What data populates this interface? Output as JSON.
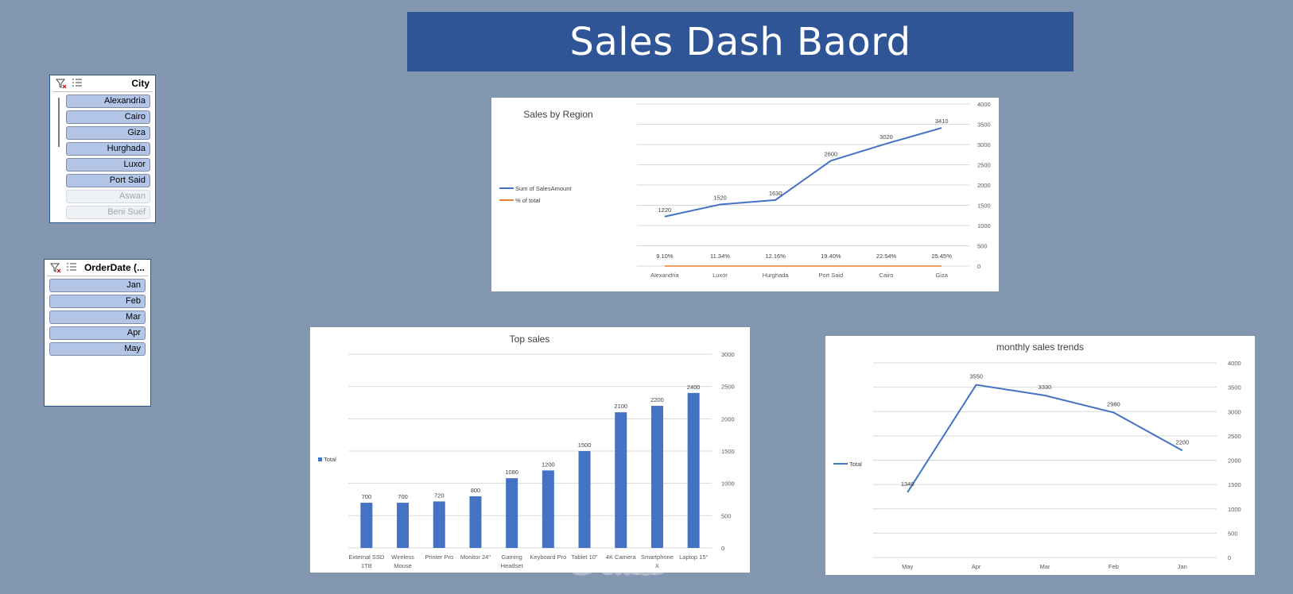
{
  "dashboard": {
    "title": "Sales Dash Baord"
  },
  "slicers": {
    "city": {
      "title": "City",
      "items": [
        {
          "label": "Alexandria",
          "has_data": true
        },
        {
          "label": "Cairo",
          "has_data": true
        },
        {
          "label": "Giza",
          "has_data": true
        },
        {
          "label": "Hurghada",
          "has_data": true
        },
        {
          "label": "Luxor",
          "has_data": true
        },
        {
          "label": "Port Said",
          "has_data": true
        },
        {
          "label": "Aswan",
          "has_data": false
        },
        {
          "label": "Beni Suef",
          "has_data": false
        }
      ]
    },
    "orderdate": {
      "title": "OrderDate (...",
      "items": [
        {
          "label": "Jan"
        },
        {
          "label": "Feb"
        },
        {
          "label": "Mar"
        },
        {
          "label": "Apr"
        },
        {
          "label": "May"
        }
      ]
    }
  },
  "watermark": "خمسات",
  "colors": {
    "background": "#8497b0",
    "banner": "#2f5597",
    "series_blue": "#4472c4",
    "series_orange": "#ed7d31",
    "slicer_item": "#b4c6e7"
  },
  "chart_data": [
    {
      "id": "region",
      "type": "line",
      "title": "Sales by Region",
      "categories": [
        "Alexandria",
        "Luxor",
        "Hurghada",
        "Port Said",
        "Cairo",
        "Giza"
      ],
      "series": [
        {
          "name": "Sum of SalesAmount",
          "values": [
            1220,
            1520,
            1630,
            2600,
            3020,
            3410
          ]
        },
        {
          "name": "% of total",
          "values": [
            0.091,
            0.1134,
            0.1216,
            0.194,
            0.2254,
            0.2545
          ],
          "labels": [
            "9.10%",
            "11.34%",
            "12.16%",
            "19.40%",
            "22.54%",
            "25.45%"
          ]
        }
      ],
      "yticks": [
        0,
        500,
        1000,
        1500,
        2000,
        2500,
        3000,
        3500,
        4000
      ],
      "ylim": [
        0,
        4000
      ],
      "legend": "left",
      "grid": true
    },
    {
      "id": "top",
      "type": "bar",
      "title": "Top sales",
      "categories": [
        [
          "External SSD",
          "1TB"
        ],
        [
          "Wireless",
          "Mouse"
        ],
        [
          "Printer Pro"
        ],
        [
          "Monitor 24\""
        ],
        [
          "Gaming",
          "Headset"
        ],
        [
          "Keyboard Pro"
        ],
        [
          "Tablet 10\""
        ],
        [
          "4K Camera"
        ],
        [
          "Smartphone",
          "X"
        ],
        [
          "Laptop 15\""
        ]
      ],
      "series": [
        {
          "name": "Total",
          "values": [
            700,
            700,
            720,
            800,
            1080,
            1200,
            1500,
            2100,
            2200,
            2400
          ]
        }
      ],
      "yticks": [
        0,
        500,
        1000,
        1500,
        2000,
        2500,
        3000
      ],
      "ylim": [
        0,
        3000
      ],
      "legend": "left",
      "grid": true
    },
    {
      "id": "monthly",
      "type": "line",
      "title": "monthly sales trends",
      "categories": [
        "May",
        "Apr",
        "Mar",
        "Feb",
        "Jan"
      ],
      "series": [
        {
          "name": "Total",
          "values": [
            1340,
            3550,
            3330,
            2980,
            2200
          ]
        }
      ],
      "yticks": [
        0,
        500,
        1000,
        1500,
        2000,
        2500,
        3000,
        3500,
        4000
      ],
      "ylim": [
        0,
        4000
      ],
      "legend": "left",
      "grid": true
    }
  ]
}
